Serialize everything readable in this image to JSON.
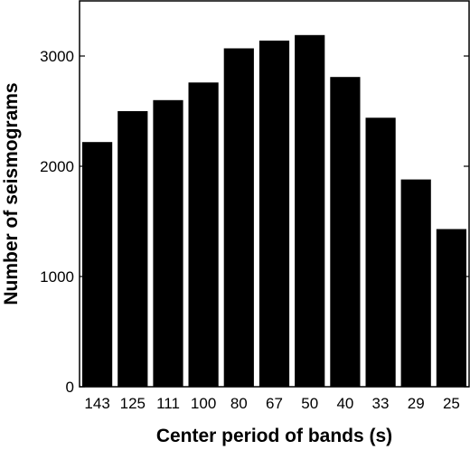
{
  "chart_data": {
    "type": "bar",
    "title": "",
    "xlabel": "Center period of bands (s)",
    "ylabel": "Number of seismograms",
    "categories": [
      "143",
      "125",
      "111",
      "100",
      "80",
      "67",
      "50",
      "40",
      "33",
      "29",
      "25"
    ],
    "values": [
      2220,
      2500,
      2600,
      2760,
      3070,
      3140,
      3190,
      2810,
      2440,
      1880,
      1430
    ],
    "ylim": [
      0,
      3500
    ],
    "yticks": [
      0,
      1000,
      2000,
      3000
    ],
    "grid": false,
    "legend": "none",
    "colors": {
      "bar": "#000000",
      "axis": "#000000",
      "background": "#ffffff"
    }
  }
}
